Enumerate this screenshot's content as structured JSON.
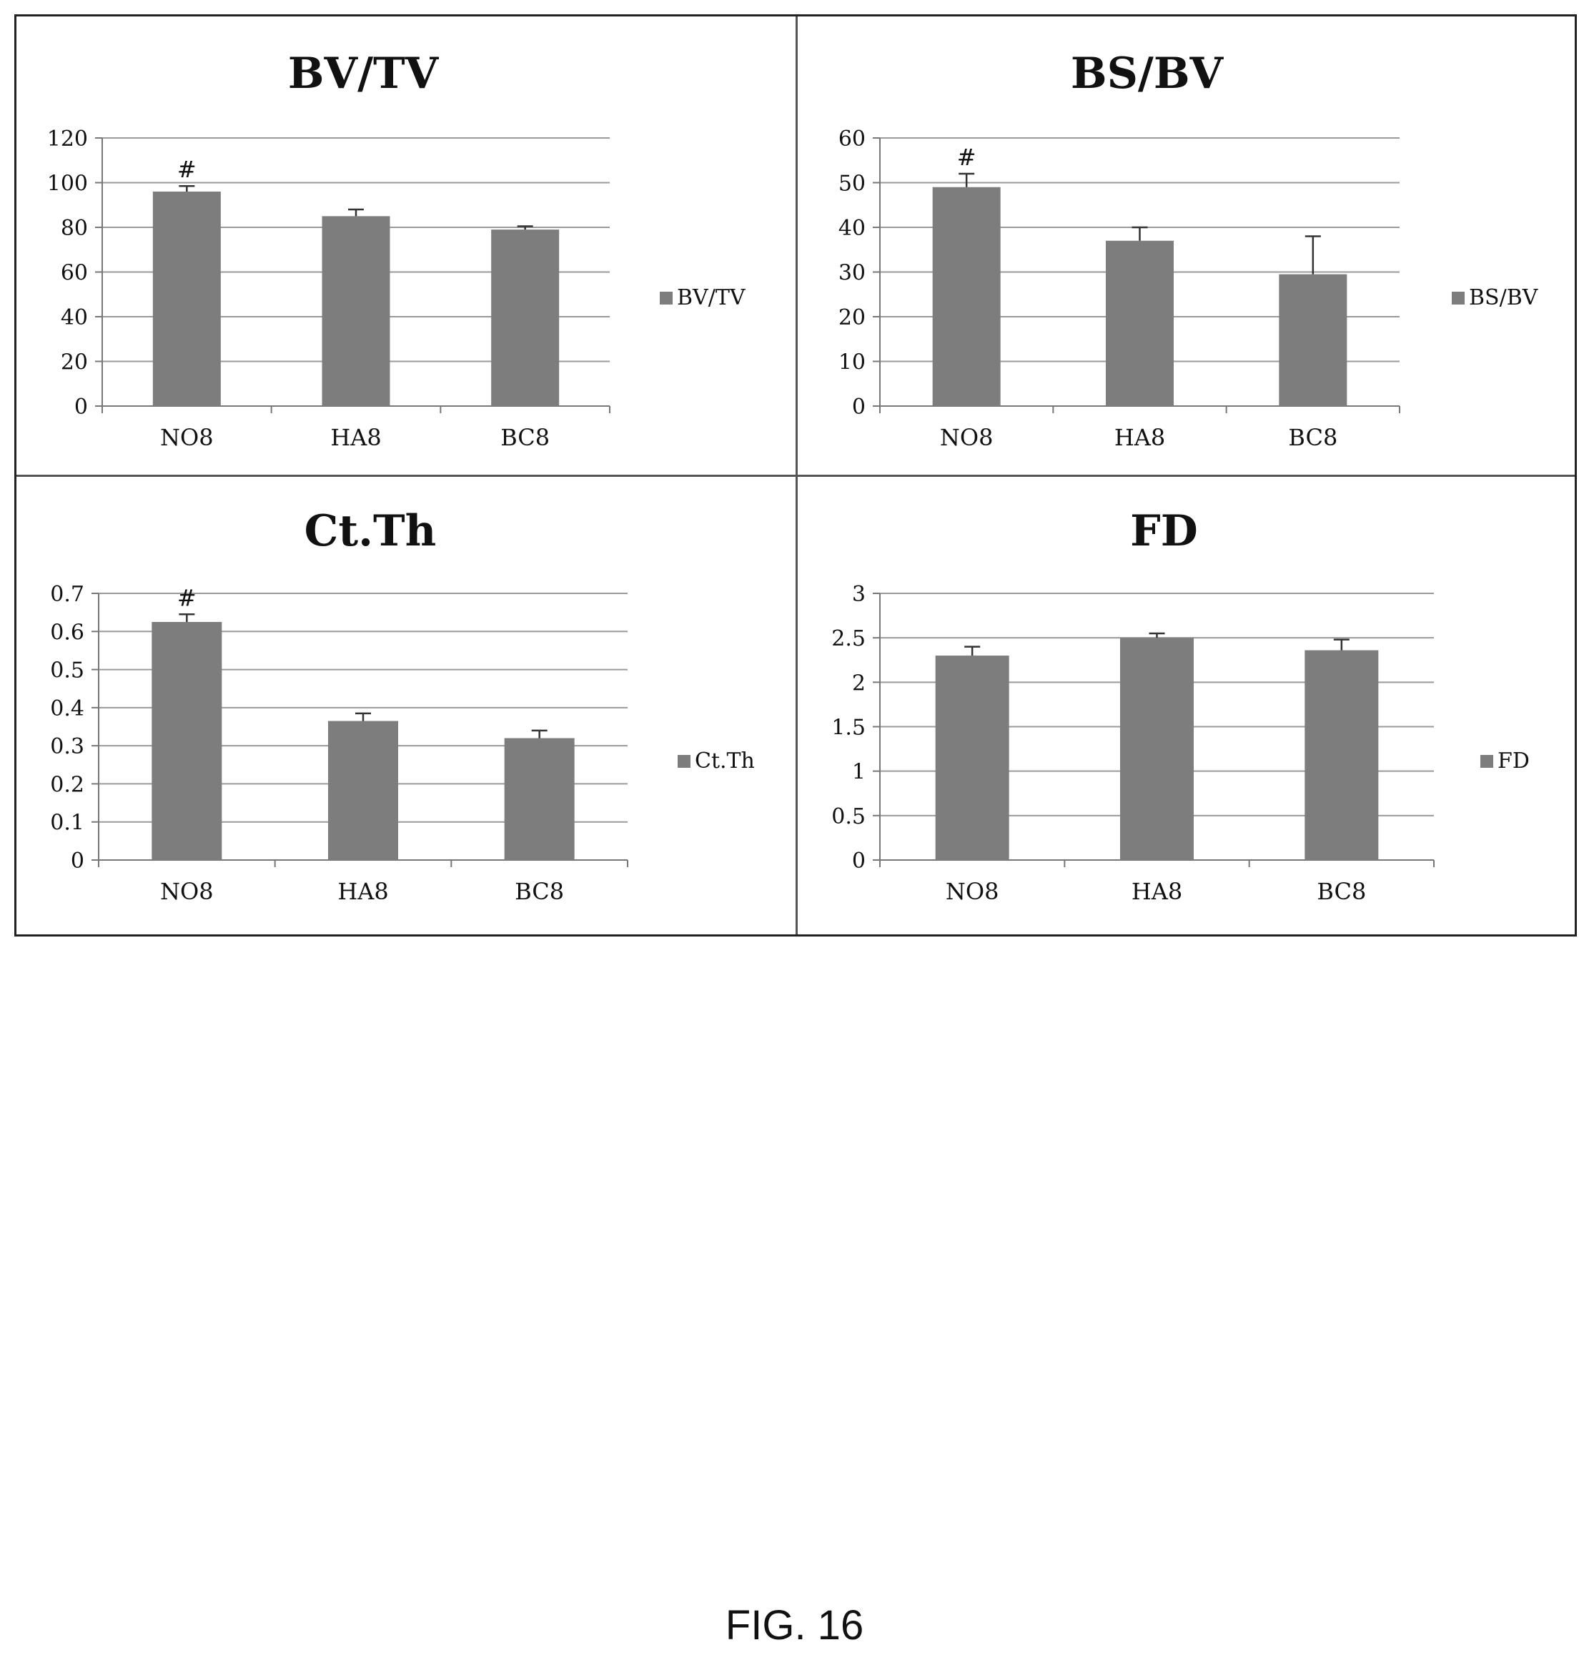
{
  "figure": {
    "caption": "FIG. 16"
  },
  "colors": {
    "bar": "#7d7d7d",
    "grid": "#9a9a9a",
    "axis": "#777777",
    "text": "#111111",
    "border": "#222222"
  },
  "chart_data": [
    {
      "type": "bar",
      "title": "BV/TV",
      "categories": [
        "NO8",
        "HA8",
        "BC8"
      ],
      "series": [
        {
          "name": "BV/TV",
          "values": [
            96,
            85,
            79
          ],
          "errors": [
            2.5,
            3,
            1.5
          ]
        }
      ],
      "ylim": [
        0,
        120
      ],
      "yticks": [
        "0",
        "20",
        "40",
        "60",
        "80",
        "100",
        "120"
      ],
      "annotations": [
        {
          "category": "NO8",
          "text": "#"
        }
      ],
      "grid": true,
      "legend": "right"
    },
    {
      "type": "bar",
      "title": "BS/BV",
      "categories": [
        "NO8",
        "HA8",
        "BC8"
      ],
      "series": [
        {
          "name": "BS/BV",
          "values": [
            49,
            37,
            29.5
          ],
          "errors": [
            3,
            3,
            8.5
          ]
        }
      ],
      "ylim": [
        0,
        60
      ],
      "yticks": [
        "0",
        "10",
        "20",
        "30",
        "40",
        "50",
        "60"
      ],
      "annotations": [
        {
          "category": "NO8",
          "text": "#"
        }
      ],
      "grid": true,
      "legend": "right"
    },
    {
      "type": "bar",
      "title": "Ct.Th",
      "categories": [
        "NO8",
        "HA8",
        "BC8"
      ],
      "series": [
        {
          "name": "Ct.Th",
          "values": [
            0.625,
            0.365,
            0.32
          ],
          "errors": [
            0.02,
            0.02,
            0.02
          ]
        }
      ],
      "ylim": [
        0,
        0.7
      ],
      "yticks": [
        "0",
        "0.1",
        "0.2",
        "0.3",
        "0.4",
        "0.5",
        "0.6",
        "0.7"
      ],
      "annotations": [
        {
          "category": "NO8",
          "text": "#"
        }
      ],
      "grid": true,
      "legend": "right"
    },
    {
      "type": "bar",
      "title": "FD",
      "categories": [
        "NO8",
        "HA8",
        "BC8"
      ],
      "series": [
        {
          "name": "FD",
          "values": [
            2.3,
            2.5,
            2.36
          ],
          "errors": [
            0.1,
            0.05,
            0.12
          ]
        }
      ],
      "ylim": [
        0,
        3
      ],
      "yticks": [
        "0",
        "0.5",
        "1",
        "1.5",
        "2",
        "2.5",
        "3"
      ],
      "annotations": [],
      "grid": true,
      "legend": "right"
    }
  ]
}
